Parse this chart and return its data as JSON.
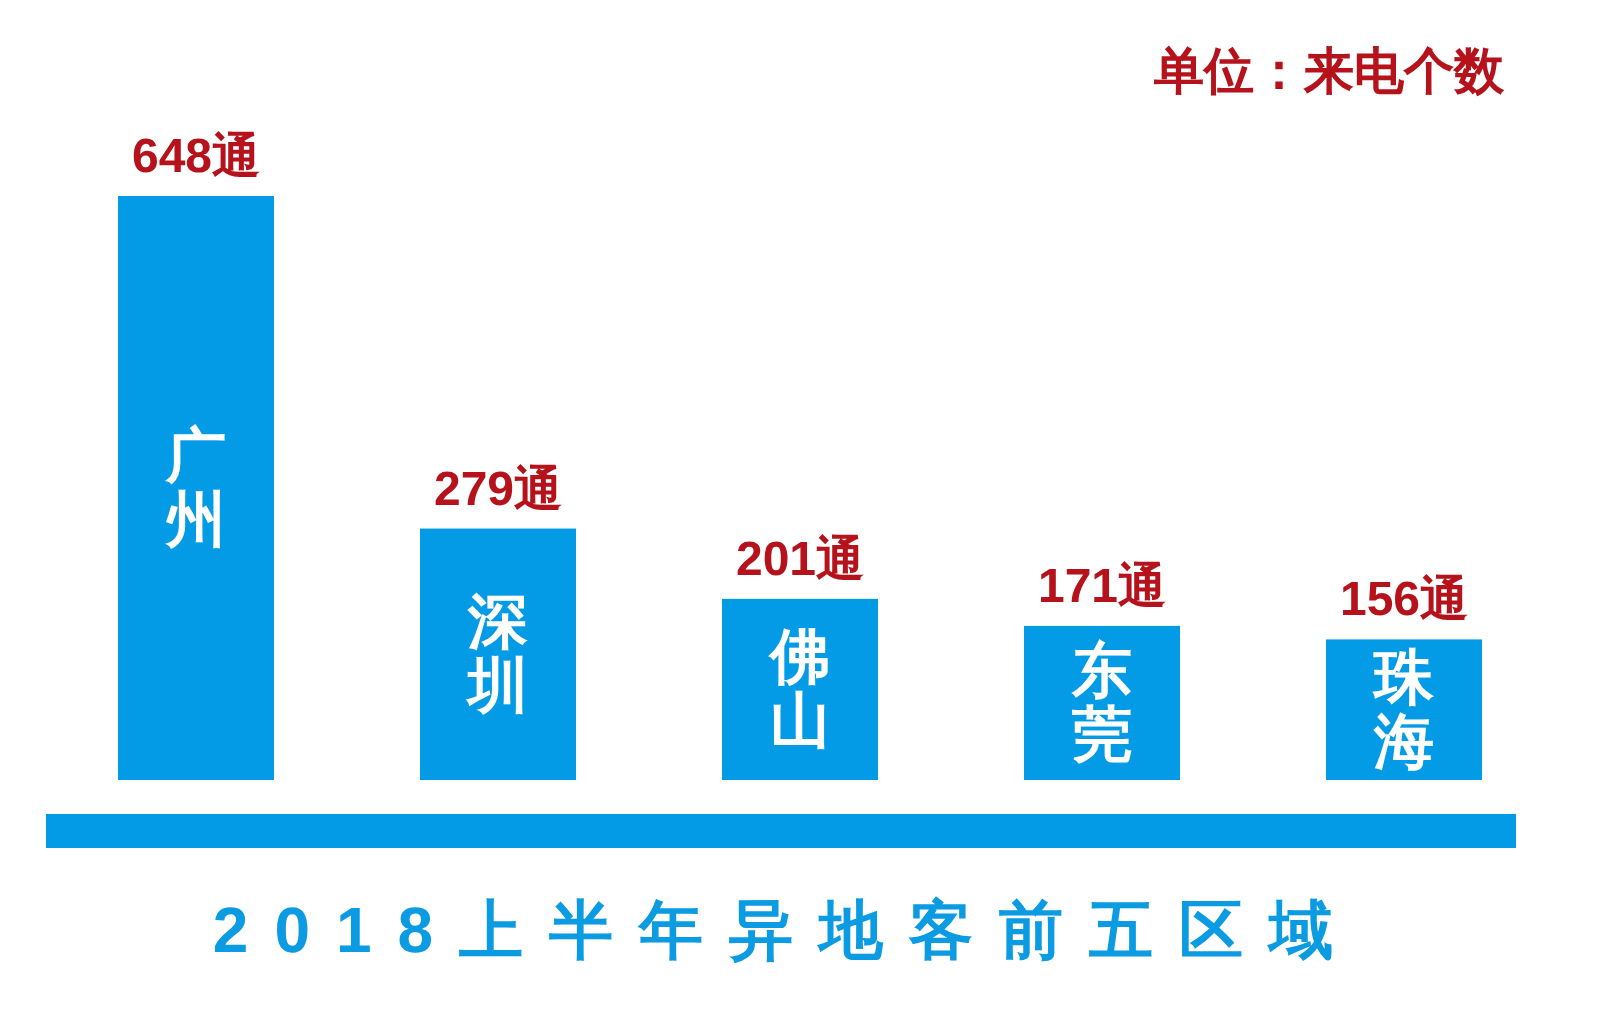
{
  "chart_data": {
    "type": "bar",
    "title": "2018上半年异地客前五区域",
    "categories": [
      "广州",
      "深圳",
      "佛山",
      "东莞",
      "珠海"
    ],
    "values": [
      648,
      279,
      201,
      171,
      156
    ],
    "value_labels": [
      "648通",
      "279通",
      "201通",
      "171通",
      "156通"
    ],
    "color": "#039be5",
    "annotations": [
      "单位：来电个数"
    ]
  }
}
